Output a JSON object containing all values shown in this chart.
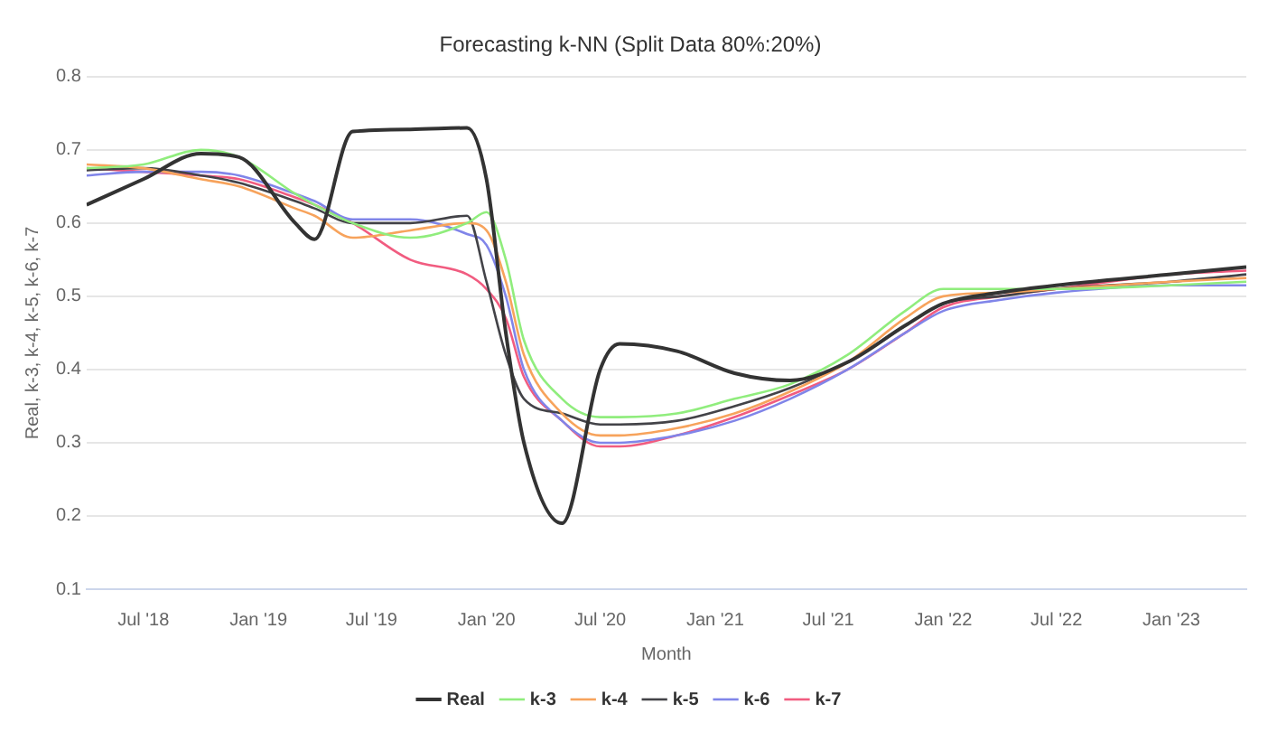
{
  "chart_data": {
    "type": "line",
    "title": "Forecasting k-NN (Split Data 80%:20%)",
    "xlabel": "Month",
    "ylabel": "Real, k-3, k-4, k-5, k-6, k-7",
    "x": [
      "2018-04",
      "2018-07",
      "2018-10",
      "2018-12",
      "2019-03",
      "2019-04",
      "2019-06",
      "2019-09",
      "2019-12",
      "2020-01",
      "2020-02",
      "2020-03",
      "2020-05",
      "2020-07",
      "2020-08",
      "2020-11",
      "2021-02",
      "2021-05",
      "2021-08",
      "2021-11",
      "2022-01",
      "2022-04",
      "2022-07",
      "2023-01",
      "2023-05"
    ],
    "series": [
      {
        "name": "Real",
        "color": "#333333",
        "values": [
          0.625,
          0.66,
          0.695,
          0.69,
          0.6,
          0.578,
          0.725,
          0.728,
          0.73,
          0.66,
          0.45,
          0.3,
          0.19,
          0.4,
          0.435,
          0.425,
          0.395,
          0.385,
          0.41,
          0.46,
          0.49,
          0.505,
          0.515,
          0.53,
          0.54
        ]
      },
      {
        "name": "k-3",
        "color": "#90ed7d",
        "values": [
          0.675,
          0.68,
          0.7,
          0.69,
          0.64,
          0.625,
          0.6,
          0.58,
          0.6,
          0.615,
          0.55,
          0.44,
          0.36,
          0.335,
          0.335,
          0.34,
          0.36,
          0.38,
          0.42,
          0.48,
          0.51,
          0.51,
          0.51,
          0.515,
          0.52
        ]
      },
      {
        "name": "k-4",
        "color": "#f7a35c",
        "values": [
          0.68,
          0.675,
          0.66,
          0.65,
          0.62,
          0.61,
          0.58,
          0.59,
          0.6,
          0.59,
          0.52,
          0.42,
          0.34,
          0.31,
          0.31,
          0.32,
          0.34,
          0.37,
          0.41,
          0.47,
          0.5,
          0.505,
          0.51,
          0.52,
          0.525
        ]
      },
      {
        "name": "k-5",
        "color": "#434348",
        "values": [
          0.672,
          0.675,
          0.665,
          0.655,
          0.63,
          0.62,
          0.6,
          0.6,
          0.61,
          0.52,
          0.42,
          0.36,
          0.34,
          0.325,
          0.325,
          0.33,
          0.35,
          0.375,
          0.41,
          0.46,
          0.49,
          0.5,
          0.51,
          0.52,
          0.53
        ]
      },
      {
        "name": "k-6",
        "color": "#8085e9",
        "values": [
          0.665,
          0.67,
          0.67,
          0.665,
          0.64,
          0.63,
          0.605,
          0.605,
          0.585,
          0.57,
          0.5,
          0.4,
          0.33,
          0.3,
          0.3,
          0.31,
          0.33,
          0.36,
          0.4,
          0.45,
          0.48,
          0.495,
          0.505,
          0.515,
          0.515
        ]
      },
      {
        "name": "k-7",
        "color": "#f15c80",
        "values": [
          0.675,
          0.67,
          0.665,
          0.66,
          0.635,
          0.625,
          0.6,
          0.55,
          0.53,
          0.51,
          0.47,
          0.39,
          0.33,
          0.295,
          0.295,
          0.31,
          0.335,
          0.365,
          0.4,
          0.45,
          0.485,
          0.5,
          0.51,
          0.53,
          0.535
        ]
      }
    ],
    "xlim": [
      "2018-04",
      "2023-05"
    ],
    "xticks": [
      {
        "value": "2018-07",
        "label": "Jul '18"
      },
      {
        "value": "2019-01",
        "label": "Jan '19"
      },
      {
        "value": "2019-07",
        "label": "Jul '19"
      },
      {
        "value": "2020-01",
        "label": "Jan '20"
      },
      {
        "value": "2020-07",
        "label": "Jul '20"
      },
      {
        "value": "2021-01",
        "label": "Jan '21"
      },
      {
        "value": "2021-07",
        "label": "Jul '21"
      },
      {
        "value": "2022-01",
        "label": "Jan '22"
      },
      {
        "value": "2022-07",
        "label": "Jul '22"
      },
      {
        "value": "2023-01",
        "label": "Jan '23"
      }
    ],
    "ylim": [
      0.1,
      0.8
    ],
    "yticks": [
      0.1,
      0.2,
      0.3,
      0.4,
      0.5,
      0.6,
      0.7,
      0.8
    ],
    "grid": "y",
    "legend": "bottom",
    "marker": "none",
    "line_style": "solid"
  }
}
